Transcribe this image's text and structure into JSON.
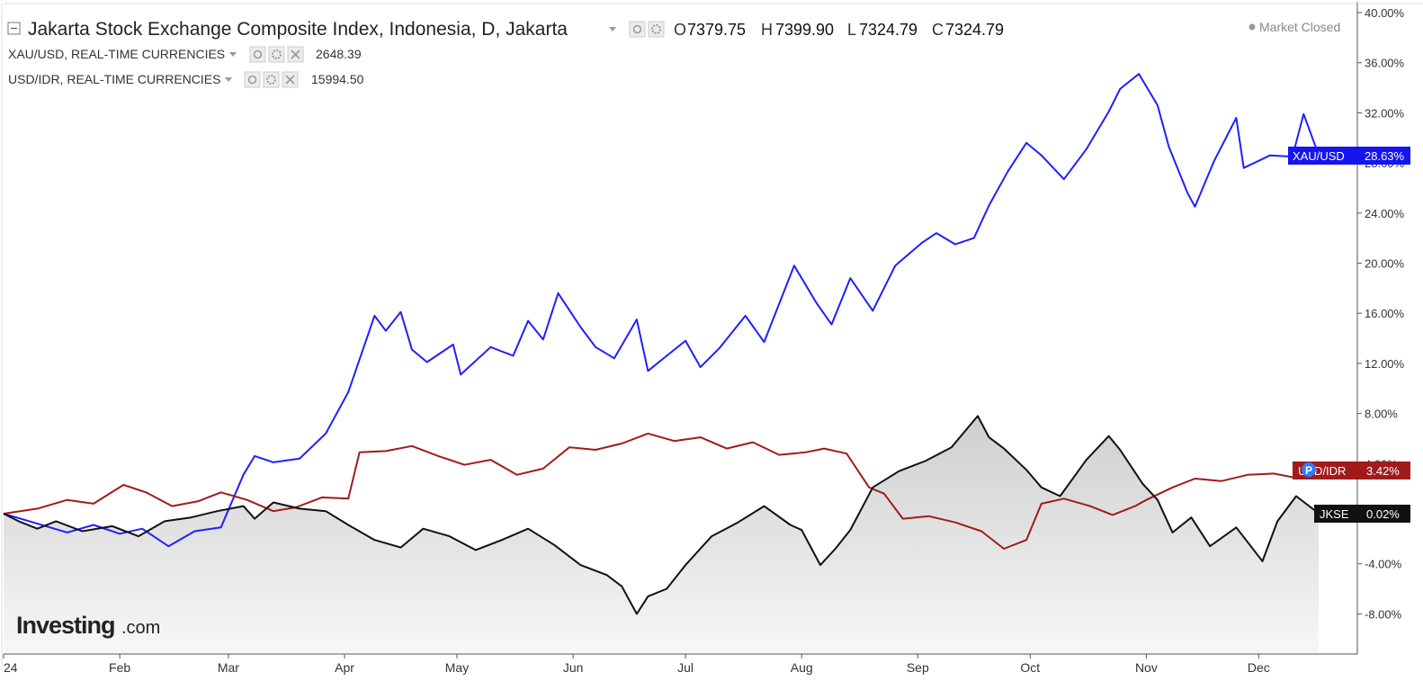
{
  "legend": {
    "main": {
      "title": "Jakarta Stock Exchange Composite Index, Indonesia, D, Jakarta",
      "ohlc": [
        {
          "key": "O",
          "value": "7379.75"
        },
        {
          "key": "H",
          "value": "7399.90"
        },
        {
          "key": "L",
          "value": "7324.79"
        },
        {
          "key": "C",
          "value": "7324.79"
        }
      ]
    },
    "sub": [
      {
        "label": "XAU/USD, REAL-TIME CURRENCIES",
        "value": "2648.39",
        "color": "#1f1fff"
      },
      {
        "label": "USD/IDR, REAL-TIME CURRENCIES",
        "value": "15994.50",
        "color": "#a11b1b"
      }
    ]
  },
  "status": {
    "market": "Market Closed"
  },
  "logo": {
    "main": "Investing",
    "suffix": ".com"
  },
  "badges": {
    "xau": {
      "name": "XAU/USD",
      "value": "28.63%"
    },
    "idr": {
      "name": "USD/IDR",
      "value": "3.42%"
    },
    "jkse": {
      "name": "JKSE",
      "value": "0.02%"
    },
    "marker": "P"
  },
  "colors": {
    "xau": "#1f1fff",
    "idr": "#a11b1b",
    "jkse": "#111111",
    "xau_badge": "#1515ef",
    "idr_badge": "#a11b1b",
    "jkse_badge": "#111111"
  },
  "chart_data": {
    "type": "line",
    "y_unit": "%",
    "ylim": [
      -11,
      41
    ],
    "y_ticks": [
      "40.00%",
      "36.00%",
      "32.00%",
      "28.00%",
      "24.00%",
      "20.00%",
      "16.00%",
      "12.00%",
      "8.00%",
      "4.00%",
      "-4.00%",
      "-8.00%"
    ],
    "y_tick_values": [
      40,
      36,
      32,
      28,
      24,
      20,
      16,
      12,
      8,
      4,
      -4,
      -8
    ],
    "x_ticks": [
      {
        "label": "24",
        "date": "2024-01-01"
      },
      {
        "label": "Feb",
        "date": "2024-02-01"
      },
      {
        "label": "Mar",
        "date": "2024-03-01"
      },
      {
        "label": "Apr",
        "date": "2024-04-01"
      },
      {
        "label": "May",
        "date": "2024-05-01"
      },
      {
        "label": "Jun",
        "date": "2024-06-01"
      },
      {
        "label": "Jul",
        "date": "2024-07-01"
      },
      {
        "label": "Aug",
        "date": "2024-08-01"
      },
      {
        "label": "Sep",
        "date": "2024-09-01"
      },
      {
        "label": "Oct",
        "date": "2024-10-01"
      },
      {
        "label": "Nov",
        "date": "2024-11-01"
      },
      {
        "label": "Dec",
        "date": "2024-12-01"
      }
    ],
    "x_range": [
      "2024-01-01",
      "2024-12-20"
    ],
    "grid": false,
    "series": [
      {
        "key": "xau",
        "name": "XAU/USD",
        "values": [
          [
            "2024-01-01",
            0
          ],
          [
            "2024-01-10",
            -0.8
          ],
          [
            "2024-01-18",
            -1.5
          ],
          [
            "2024-01-25",
            -0.9
          ],
          [
            "2024-02-01",
            -1.6
          ],
          [
            "2024-02-07",
            -1.2
          ],
          [
            "2024-02-14",
            -2.6
          ],
          [
            "2024-02-21",
            -1.4
          ],
          [
            "2024-02-28",
            -1.1
          ],
          [
            "2024-03-05",
            3.1
          ],
          [
            "2024-03-08",
            4.6
          ],
          [
            "2024-03-13",
            4.1
          ],
          [
            "2024-03-20",
            4.4
          ],
          [
            "2024-03-27",
            6.4
          ],
          [
            "2024-04-02",
            9.7
          ],
          [
            "2024-04-09",
            15.8
          ],
          [
            "2024-04-12",
            14.6
          ],
          [
            "2024-04-16",
            16.1
          ],
          [
            "2024-04-19",
            13.1
          ],
          [
            "2024-04-23",
            12.1
          ],
          [
            "2024-04-30",
            13.5
          ],
          [
            "2024-05-02",
            11.1
          ],
          [
            "2024-05-10",
            13.3
          ],
          [
            "2024-05-16",
            12.6
          ],
          [
            "2024-05-20",
            15.4
          ],
          [
            "2024-05-24",
            13.9
          ],
          [
            "2024-05-28",
            17.6
          ],
          [
            "2024-06-03",
            14.9
          ],
          [
            "2024-06-07",
            13.3
          ],
          [
            "2024-06-12",
            12.4
          ],
          [
            "2024-06-18",
            15.5
          ],
          [
            "2024-06-21",
            11.4
          ],
          [
            "2024-06-26",
            12.6
          ],
          [
            "2024-07-01",
            13.8
          ],
          [
            "2024-07-05",
            11.7
          ],
          [
            "2024-07-10",
            13.2
          ],
          [
            "2024-07-17",
            15.8
          ],
          [
            "2024-07-22",
            13.7
          ],
          [
            "2024-07-30",
            19.8
          ],
          [
            "2024-08-05",
            16.8
          ],
          [
            "2024-08-09",
            15.1
          ],
          [
            "2024-08-14",
            18.8
          ],
          [
            "2024-08-20",
            16.2
          ],
          [
            "2024-08-26",
            19.8
          ],
          [
            "2024-09-02",
            21.6
          ],
          [
            "2024-09-06",
            22.4
          ],
          [
            "2024-09-11",
            21.5
          ],
          [
            "2024-09-16",
            22.0
          ],
          [
            "2024-09-20",
            24.6
          ],
          [
            "2024-09-25",
            27.3
          ],
          [
            "2024-09-30",
            29.6
          ],
          [
            "2024-10-04",
            28.6
          ],
          [
            "2024-10-10",
            26.7
          ],
          [
            "2024-10-16",
            29.1
          ],
          [
            "2024-10-22",
            32.1
          ],
          [
            "2024-10-25",
            33.9
          ],
          [
            "2024-10-30",
            35.1
          ],
          [
            "2024-11-04",
            32.6
          ],
          [
            "2024-11-07",
            29.3
          ],
          [
            "2024-11-12",
            25.6
          ],
          [
            "2024-11-14",
            24.5
          ],
          [
            "2024-11-19",
            28.1
          ],
          [
            "2024-11-25",
            31.6
          ],
          [
            "2024-11-27",
            27.6
          ],
          [
            "2024-12-04",
            28.6
          ],
          [
            "2024-12-10",
            28.5
          ],
          [
            "2024-12-13",
            31.9
          ],
          [
            "2024-12-17",
            28.63
          ]
        ]
      },
      {
        "key": "idr",
        "name": "USD/IDR",
        "values": [
          [
            "2024-01-01",
            0
          ],
          [
            "2024-01-10",
            0.4
          ],
          [
            "2024-01-18",
            1.1
          ],
          [
            "2024-01-25",
            0.8
          ],
          [
            "2024-02-02",
            2.3
          ],
          [
            "2024-02-08",
            1.7
          ],
          [
            "2024-02-15",
            0.6
          ],
          [
            "2024-02-22",
            1.0
          ],
          [
            "2024-02-28",
            1.7
          ],
          [
            "2024-03-06",
            1.1
          ],
          [
            "2024-03-13",
            0.2
          ],
          [
            "2024-03-19",
            0.5
          ],
          [
            "2024-03-26",
            1.3
          ],
          [
            "2024-04-02",
            1.2
          ],
          [
            "2024-04-05",
            4.9
          ],
          [
            "2024-04-12",
            5.0
          ],
          [
            "2024-04-19",
            5.4
          ],
          [
            "2024-04-26",
            4.6
          ],
          [
            "2024-05-03",
            3.9
          ],
          [
            "2024-05-10",
            4.3
          ],
          [
            "2024-05-17",
            3.1
          ],
          [
            "2024-05-24",
            3.6
          ],
          [
            "2024-05-31",
            5.3
          ],
          [
            "2024-06-07",
            5.1
          ],
          [
            "2024-06-14",
            5.6
          ],
          [
            "2024-06-21",
            6.4
          ],
          [
            "2024-06-28",
            5.8
          ],
          [
            "2024-07-05",
            6.1
          ],
          [
            "2024-07-12",
            5.2
          ],
          [
            "2024-07-19",
            5.7
          ],
          [
            "2024-07-26",
            4.7
          ],
          [
            "2024-08-02",
            4.9
          ],
          [
            "2024-08-07",
            5.2
          ],
          [
            "2024-08-13",
            4.8
          ],
          [
            "2024-08-19",
            2.1
          ],
          [
            "2024-08-23",
            1.6
          ],
          [
            "2024-08-28",
            -0.4
          ],
          [
            "2024-09-04",
            -0.2
          ],
          [
            "2024-09-11",
            -0.7
          ],
          [
            "2024-09-18",
            -1.4
          ],
          [
            "2024-09-24",
            -2.8
          ],
          [
            "2024-09-30",
            -2.1
          ],
          [
            "2024-10-04",
            0.8
          ],
          [
            "2024-10-10",
            1.2
          ],
          [
            "2024-10-17",
            0.6
          ],
          [
            "2024-10-23",
            -0.1
          ],
          [
            "2024-10-29",
            0.6
          ],
          [
            "2024-11-01",
            1.1
          ],
          [
            "2024-11-08",
            2.1
          ],
          [
            "2024-11-14",
            2.8
          ],
          [
            "2024-11-21",
            2.6
          ],
          [
            "2024-11-28",
            3.1
          ],
          [
            "2024-12-05",
            3.2
          ],
          [
            "2024-12-12",
            2.8
          ],
          [
            "2024-12-17",
            3.42
          ]
        ]
      },
      {
        "key": "jkse",
        "name": "JKSE",
        "values": [
          [
            "2024-01-01",
            0
          ],
          [
            "2024-01-05",
            -0.6
          ],
          [
            "2024-01-10",
            -1.2
          ],
          [
            "2024-01-15",
            -0.6
          ],
          [
            "2024-01-22",
            -1.4
          ],
          [
            "2024-01-30",
            -1.0
          ],
          [
            "2024-02-06",
            -1.8
          ],
          [
            "2024-02-13",
            -0.6
          ],
          [
            "2024-02-20",
            -0.3
          ],
          [
            "2024-02-27",
            0.2
          ],
          [
            "2024-03-05",
            0.6
          ],
          [
            "2024-03-08",
            -0.4
          ],
          [
            "2024-03-13",
            0.9
          ],
          [
            "2024-03-20",
            0.4
          ],
          [
            "2024-03-27",
            0.2
          ],
          [
            "2024-04-02",
            -0.9
          ],
          [
            "2024-04-09",
            -2.1
          ],
          [
            "2024-04-16",
            -2.7
          ],
          [
            "2024-04-22",
            -1.2
          ],
          [
            "2024-04-29",
            -1.8
          ],
          [
            "2024-05-06",
            -2.9
          ],
          [
            "2024-05-13",
            -2.1
          ],
          [
            "2024-05-20",
            -1.2
          ],
          [
            "2024-05-27",
            -2.5
          ],
          [
            "2024-06-03",
            -4.1
          ],
          [
            "2024-06-10",
            -4.9
          ],
          [
            "2024-06-14",
            -5.8
          ],
          [
            "2024-06-18",
            -8.0
          ],
          [
            "2024-06-21",
            -6.6
          ],
          [
            "2024-06-26",
            -6.0
          ],
          [
            "2024-07-01",
            -4.1
          ],
          [
            "2024-07-08",
            -1.8
          ],
          [
            "2024-07-15",
            -0.7
          ],
          [
            "2024-07-22",
            0.6
          ],
          [
            "2024-07-29",
            -0.9
          ],
          [
            "2024-08-01",
            -1.3
          ],
          [
            "2024-08-06",
            -4.1
          ],
          [
            "2024-08-10",
            -2.8
          ],
          [
            "2024-08-14",
            -1.3
          ],
          [
            "2024-08-20",
            2.1
          ],
          [
            "2024-08-27",
            3.4
          ],
          [
            "2024-09-03",
            4.2
          ],
          [
            "2024-09-10",
            5.3
          ],
          [
            "2024-09-17",
            7.8
          ],
          [
            "2024-09-20",
            6.1
          ],
          [
            "2024-09-24",
            5.2
          ],
          [
            "2024-09-30",
            3.5
          ],
          [
            "2024-10-04",
            2.1
          ],
          [
            "2024-10-09",
            1.4
          ],
          [
            "2024-10-16",
            4.3
          ],
          [
            "2024-10-22",
            6.2
          ],
          [
            "2024-10-25",
            5.1
          ],
          [
            "2024-10-31",
            2.4
          ],
          [
            "2024-11-04",
            1.1
          ],
          [
            "2024-11-08",
            -1.5
          ],
          [
            "2024-11-13",
            -0.3
          ],
          [
            "2024-11-18",
            -2.6
          ],
          [
            "2024-11-25",
            -1.1
          ],
          [
            "2024-12-02",
            -3.8
          ],
          [
            "2024-12-06",
            -0.6
          ],
          [
            "2024-12-11",
            1.4
          ],
          [
            "2024-12-17",
            0.02
          ]
        ]
      }
    ]
  }
}
